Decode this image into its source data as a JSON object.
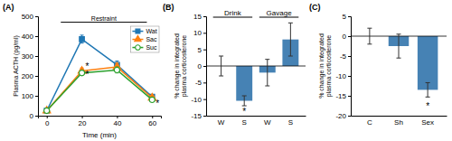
{
  "chart_data": [
    {
      "type": "line",
      "title": "(A)",
      "xlabel": "Time (min)",
      "ylabel": "Plasma ACTH (pg/ml)",
      "x": [
        0,
        20,
        40,
        60
      ],
      "xlim": [
        -5,
        65
      ],
      "xticks": [
        0,
        20,
        40,
        60
      ],
      "ylim": [
        0,
        500
      ],
      "yticks": [
        0,
        100,
        200,
        300,
        400,
        500
      ],
      "legend": "upper right",
      "series": [
        {
          "name": "Wat",
          "marker": "square",
          "values": [
            25,
            385,
            255,
            95
          ],
          "errors": [
            5,
            20,
            20,
            10
          ]
        },
        {
          "name": "Sac",
          "marker": "triangle",
          "values": [
            25,
            225,
            245,
            90
          ],
          "errors": [
            5,
            15,
            18,
            10
          ]
        },
        {
          "name": "Suc",
          "marker": "open-circle",
          "values": [
            25,
            215,
            230,
            80
          ],
          "errors": [
            5,
            12,
            15,
            8
          ]
        }
      ],
      "annotations": [
        {
          "text": "Restraint",
          "x": [
            8,
            57
          ],
          "y": 470
        },
        {
          "text": "*",
          "x": 20.5,
          "y": 258
        },
        {
          "text": "*",
          "x": 20.5,
          "y": 218
        },
        {
          "text": "*",
          "x": 60.5,
          "y": 72
        }
      ]
    },
    {
      "type": "bar",
      "title": "(B)",
      "ylabel": "% change in integrated\nplasma corticosterone",
      "categories": [
        "W",
        "S",
        "W",
        "S"
      ],
      "values": [
        0,
        -10.5,
        -2.0,
        8.0
      ],
      "errors": [
        3.0,
        1.5,
        4.0,
        5.0
      ],
      "ylim": [
        -15,
        15
      ],
      "yticks": [
        -15,
        -10,
        -5,
        0,
        5,
        10,
        15
      ],
      "annotations": [
        {
          "text": "Drink",
          "span": [
            0,
            1
          ]
        },
        {
          "text": "Gavage",
          "span": [
            2,
            3
          ]
        },
        {
          "text": "*",
          "category": 1,
          "y": -13
        }
      ]
    },
    {
      "type": "bar",
      "title": "(C)",
      "ylabel": "% change in integrated\nplasma corticosterone",
      "categories": [
        "C",
        "Sh",
        "Sex"
      ],
      "values": [
        0,
        -2.5,
        -13.5
      ],
      "errors": [
        2.0,
        3.0,
        1.8
      ],
      "ylim": [
        -20,
        5
      ],
      "yticks": [
        -20,
        -15,
        -10,
        -5,
        0,
        5
      ],
      "annotations": [
        {
          "text": "*",
          "category": 2,
          "y": -17
        }
      ]
    }
  ]
}
